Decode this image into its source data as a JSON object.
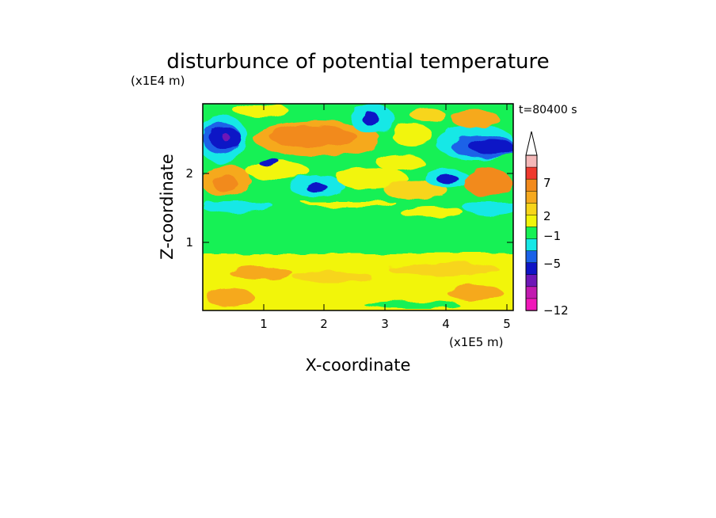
{
  "chart_data": {
    "type": "heatmap",
    "title": "disturbunce of potential temperature",
    "time_label": "t=80400 s",
    "xlabel": "X-coordinate",
    "ylabel": "Z-coordinate",
    "x_unit": "(x1E5 m)",
    "y_unit": "(x1E4 m)",
    "xlim": [
      0,
      5.15
    ],
    "ylim": [
      0,
      3.0
    ],
    "x_ticks": [
      "1",
      "2",
      "3",
      "4",
      "5"
    ],
    "y_ticks": [
      "1",
      "2"
    ],
    "colorbar": {
      "labels": [
        "7",
        "2",
        "−1",
        "−5",
        "−12"
      ],
      "colors_top_to_bottom": [
        "#f4b8b8",
        "#ef3a2e",
        "#f28a1c",
        "#f6a91e",
        "#f7d51a",
        "#f2f50a",
        "#16f154",
        "#15e8e6",
        "#1a62e8",
        "#0f14c6",
        "#6e17b7",
        "#c21ab0",
        "#f018b9"
      ],
      "extend_top": true
    },
    "contour_levels_described": [
      {
        "z_range": [
          0,
          0.9
        ],
        "value_band": "0 to 2",
        "color": "yellow"
      },
      {
        "z_range": [
          0.9,
          1.3
        ],
        "value_band": "-1 to 0",
        "color": "green"
      },
      {
        "z_range": [
          1.3,
          1.6
        ],
        "value_band": "-2 to -1",
        "color": "cyan/green mix"
      },
      {
        "z_range": [
          1.6,
          2.5
        ],
        "value_band": "-5 to 4",
        "color": "mixed waves"
      },
      {
        "z_range": [
          2.5,
          3.0
        ],
        "value_band": "-5 to 3",
        "color": "blue cores left and right, orange center"
      }
    ]
  }
}
